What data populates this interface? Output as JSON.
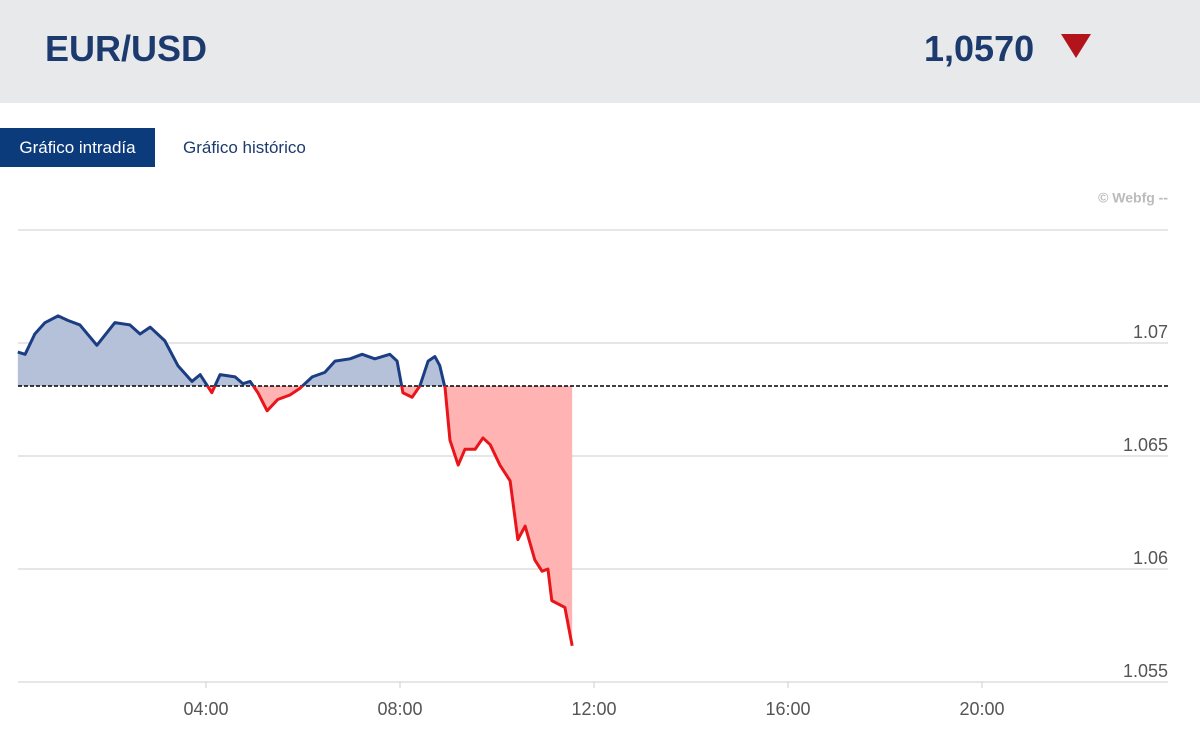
{
  "header": {
    "pair": "EUR/USD",
    "price": "1,0570"
  },
  "tabs": {
    "active": "Gráfico intradía",
    "other": "Gráfico histórico"
  },
  "chart_data": {
    "type": "line",
    "credit": "© Webfg --",
    "x": [
      0.12,
      0.27,
      0.47,
      0.68,
      0.95,
      1.15,
      1.4,
      1.75,
      2.12,
      2.43,
      2.64,
      2.85,
      3.15,
      3.42,
      3.71,
      3.88,
      4.12,
      4.29,
      4.6,
      4.76,
      4.91,
      5.07,
      5.26,
      5.48,
      5.73,
      5.94,
      6.19,
      6.45,
      6.66,
      6.97,
      7.22,
      7.48,
      7.79,
      7.94,
      8.06,
      8.25,
      8.41,
      8.58,
      8.72,
      8.82,
      8.93,
      9.03,
      9.2,
      9.34,
      9.55,
      9.71,
      9.86,
      10.06,
      10.27,
      10.43,
      10.58,
      10.78,
      10.93,
      11.05,
      11.13,
      11.4,
      11.55
    ],
    "values": [
      1.0696,
      1.0695,
      1.0704,
      1.0709,
      1.0712,
      1.071,
      1.0708,
      1.0699,
      1.0709,
      1.0708,
      1.0704,
      1.0707,
      1.0701,
      1.069,
      1.0683,
      1.0686,
      1.0678,
      1.0686,
      1.0685,
      1.0682,
      1.0683,
      1.0678,
      1.067,
      1.0675,
      1.0677,
      1.068,
      1.0685,
      1.0687,
      1.0692,
      1.0693,
      1.0695,
      1.0693,
      1.0695,
      1.0692,
      1.0678,
      1.0676,
      1.0681,
      1.0692,
      1.0694,
      1.069,
      1.068,
      1.0657,
      1.0646,
      1.0653,
      1.0653,
      1.0658,
      1.0655,
      1.0646,
      1.0639,
      1.0613,
      1.0619,
      1.0604,
      1.0599,
      1.06,
      1.0586,
      1.0583,
      1.0566
    ],
    "reference": 1.0681,
    "xlim": [
      0,
      24
    ],
    "xticks": [
      {
        "value": 4,
        "label": "04:00"
      },
      {
        "value": 8,
        "label": "08:00"
      },
      {
        "value": 12,
        "label": "12:00"
      },
      {
        "value": 16,
        "label": "16:00"
      },
      {
        "value": 20,
        "label": "20:00"
      }
    ],
    "ylim": [
      1.055,
      1.075
    ],
    "yticks": [
      1.055,
      1.06,
      1.065,
      1.07
    ],
    "grid": true,
    "colors": {
      "above": "#1b3d83",
      "below": "#e8161b",
      "fill_above": "#b5c1d8",
      "fill_below": "#ffb3b3"
    }
  }
}
